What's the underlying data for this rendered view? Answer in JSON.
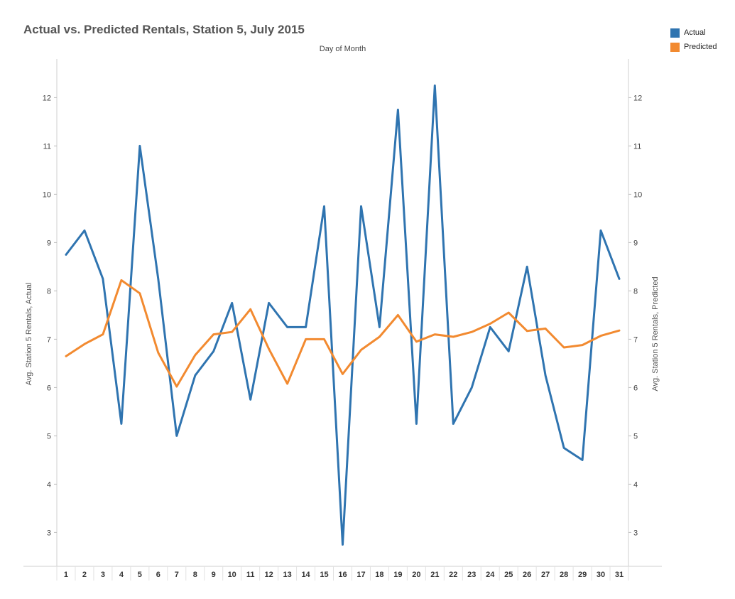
{
  "chart_data": {
    "type": "line",
    "title": "Actual vs. Predicted Rentals, Station 5, July 2015",
    "xlabel": "Day of Month",
    "ylabel_left": "Avg. Station 5 Rentals, Actual",
    "ylabel_right": "Avg. Station 5 Rentals, Predicted",
    "x": [
      1,
      2,
      3,
      4,
      5,
      6,
      7,
      8,
      9,
      10,
      11,
      12,
      13,
      14,
      15,
      16,
      17,
      18,
      19,
      20,
      21,
      22,
      23,
      24,
      25,
      26,
      27,
      28,
      29,
      30,
      31
    ],
    "y_ticks": [
      3,
      4,
      5,
      6,
      7,
      8,
      9,
      10,
      11,
      12
    ],
    "ylim": [
      2.3,
      12.8
    ],
    "legend_position": "top-right",
    "series": [
      {
        "name": "Actual",
        "color": "#2f74b0",
        "values": [
          8.75,
          9.25,
          8.25,
          5.25,
          11.0,
          8.25,
          5.0,
          6.25,
          6.75,
          7.75,
          5.75,
          7.75,
          7.25,
          7.25,
          9.75,
          2.75,
          9.75,
          7.25,
          11.75,
          5.25,
          12.25,
          5.25,
          6.0,
          7.25,
          6.75,
          8.5,
          6.25,
          4.75,
          4.5,
          9.25,
          8.25
        ]
      },
      {
        "name": "Predicted",
        "color": "#f28a30",
        "values": [
          6.65,
          6.9,
          7.1,
          8.22,
          7.95,
          6.72,
          6.02,
          6.67,
          7.1,
          7.15,
          7.62,
          6.8,
          6.08,
          7.0,
          7.0,
          6.28,
          6.78,
          7.05,
          7.5,
          6.95,
          7.1,
          7.05,
          7.15,
          7.32,
          7.55,
          7.17,
          7.22,
          6.83,
          6.88,
          7.07,
          7.18
        ]
      }
    ]
  }
}
